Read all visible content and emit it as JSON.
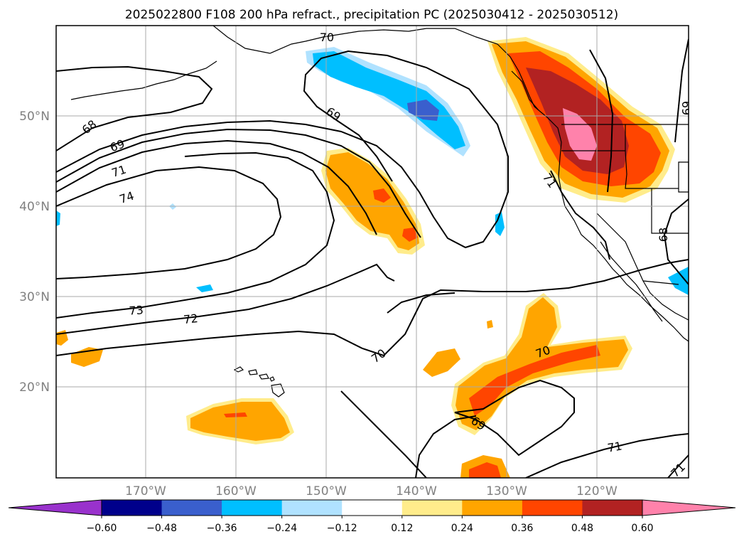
{
  "title": "2025022800 F108 200 hPa refract., precipitation PC (2025030412 - 2025030512)",
  "latitude_labels": [
    "50°N",
    "40°N",
    "30°N",
    "20°N"
  ],
  "longitude_labels": [
    "170°W",
    "160°W",
    "150°W",
    "140°W",
    "130°W",
    "120°W"
  ],
  "colorbar": {
    "ticks": [
      "−0.60",
      "−0.48",
      "−0.36",
      "−0.24",
      "−0.12",
      "0.12",
      "0.24",
      "0.36",
      "0.48",
      "0.60"
    ],
    "colors": [
      "#9932cc",
      "#00008b",
      "#3a5fcd",
      "#00bfff",
      "#b0e2ff",
      "#ffffff",
      "#ffec8b",
      "#ffa500",
      "#ff4500",
      "#b22222",
      "#ff82ab"
    ]
  },
  "contour_labels": [
    "68",
    "69",
    "71",
    "74",
    "70",
    "69",
    "69",
    "71",
    "68",
    "73",
    "72",
    "70",
    "70",
    "69",
    "71",
    "71"
  ],
  "colors": {
    "negative_light": "#b0e2ff",
    "negative": "#00bfff",
    "negative_strong": "#3a5fcd",
    "positive_light": "#ffec8b",
    "positive": "#ffa500",
    "positive_strong": "#ff4500",
    "positive_stronger": "#b22222",
    "positive_max": "#ff82ab"
  }
}
